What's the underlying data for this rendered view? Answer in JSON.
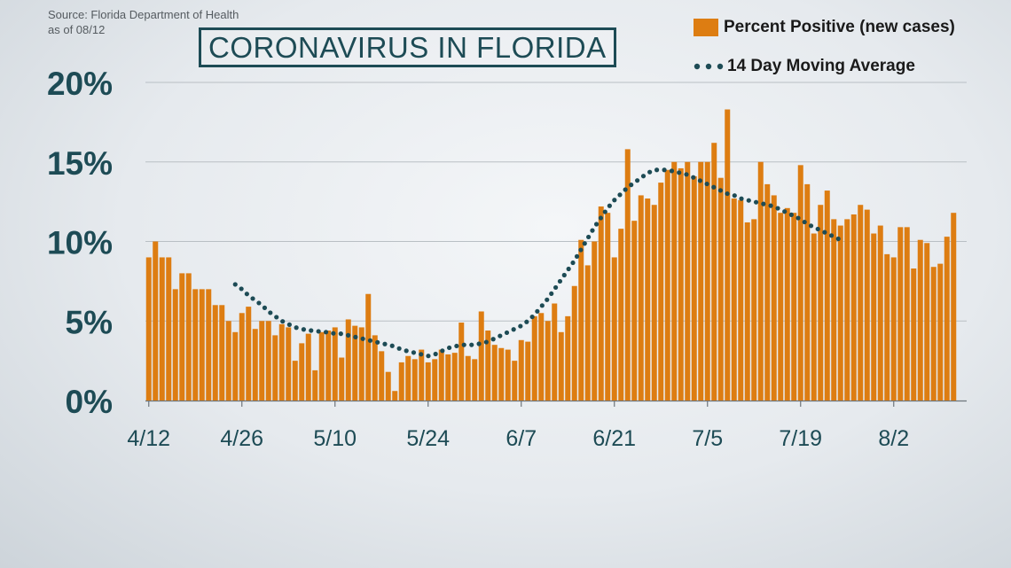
{
  "source": {
    "line1": "Source: Florida Department of Health",
    "line2": "as of 08/12"
  },
  "chart_data": {
    "type": "bar",
    "title": "CORONAVIRUS IN FLORIDA",
    "xlabel": "",
    "ylabel": "",
    "ylim": [
      0,
      20
    ],
    "ytick_labels": [
      "0%",
      "5%",
      "10%",
      "15%",
      "20%"
    ],
    "yticks": [
      0,
      5,
      10,
      15,
      20
    ],
    "x_tick_labels": [
      "4/12",
      "4/26",
      "5/10",
      "5/24",
      "6/7",
      "6/21",
      "7/5",
      "7/19",
      "8/2"
    ],
    "x_tick_day_index": [
      0,
      14,
      28,
      42,
      56,
      70,
      84,
      98,
      112
    ],
    "grid": true,
    "legend_position": "top-right",
    "colors": {
      "bars": "#dd7d12",
      "moving_average": "#1d4b55"
    },
    "series": [
      {
        "name": "Percent Positive (new cases)",
        "type": "bar",
        "start_date": "4/12",
        "values": [
          9.0,
          10.0,
          9.0,
          9.0,
          7.0,
          8.0,
          8.0,
          7.0,
          7.0,
          7.0,
          6.0,
          6.0,
          5.0,
          4.3,
          5.5,
          5.9,
          4.5,
          5.0,
          5.0,
          4.1,
          4.8,
          4.6,
          2.5,
          3.6,
          4.2,
          1.9,
          4.3,
          4.4,
          4.6,
          2.7,
          5.1,
          4.7,
          4.6,
          6.7,
          4.1,
          3.1,
          1.8,
          0.6,
          2.4,
          2.8,
          2.6,
          3.2,
          2.4,
          2.6,
          3.2,
          2.9,
          3.0,
          4.9,
          2.8,
          2.6,
          5.6,
          4.4,
          3.5,
          3.3,
          3.2,
          2.5,
          3.8,
          3.7,
          5.3,
          5.5,
          5.0,
          6.1,
          4.3,
          5.3,
          7.2,
          10.1,
          8.5,
          10.0,
          12.2,
          11.8,
          9.0,
          10.8,
          15.8,
          11.3,
          12.9,
          12.7,
          12.3,
          13.7,
          14.5,
          15.0,
          14.6,
          15.0,
          14.1,
          15.0,
          15.0,
          16.2,
          14.0,
          18.3,
          12.7,
          12.6,
          11.2,
          11.4,
          15.0,
          13.6,
          12.9,
          11.8,
          12.1,
          11.8,
          14.8,
          13.6,
          10.5,
          12.3,
          13.2,
          11.4,
          11.0,
          11.4,
          11.7,
          12.3,
          12.0,
          10.5,
          11.0,
          9.2,
          9.0,
          10.9,
          10.9,
          8.3,
          10.1,
          9.9,
          8.4,
          8.6,
          10.3,
          11.8
        ]
      },
      {
        "name": "14 Day Moving Average",
        "type": "line",
        "start_day_index": 13,
        "values": [
          7.3,
          7.0,
          6.6,
          6.3,
          6.0,
          5.6,
          5.3,
          5.0,
          4.8,
          4.6,
          4.5,
          4.4,
          4.4,
          4.3,
          4.3,
          4.2,
          4.2,
          4.1,
          4.0,
          3.9,
          3.8,
          3.7,
          3.6,
          3.5,
          3.4,
          3.2,
          3.1,
          3.0,
          2.9,
          2.8,
          2.9,
          3.1,
          3.3,
          3.4,
          3.5,
          3.5,
          3.5,
          3.6,
          3.7,
          3.9,
          4.1,
          4.3,
          4.5,
          4.7,
          5.0,
          5.4,
          5.9,
          6.4,
          7.0,
          7.6,
          8.2,
          8.8,
          9.5,
          10.2,
          10.9,
          11.5,
          12.1,
          12.6,
          13.0,
          13.4,
          13.7,
          14.0,
          14.3,
          14.5,
          14.5,
          14.5,
          14.4,
          14.3,
          14.2,
          14.0,
          13.8,
          13.6,
          13.4,
          13.2,
          13.0,
          12.9,
          12.7,
          12.6,
          12.5,
          12.4,
          12.3,
          12.2,
          12.0,
          11.8,
          11.6,
          11.4,
          11.1,
          10.9,
          10.7,
          10.5,
          10.3,
          10.1
        ]
      }
    ]
  }
}
